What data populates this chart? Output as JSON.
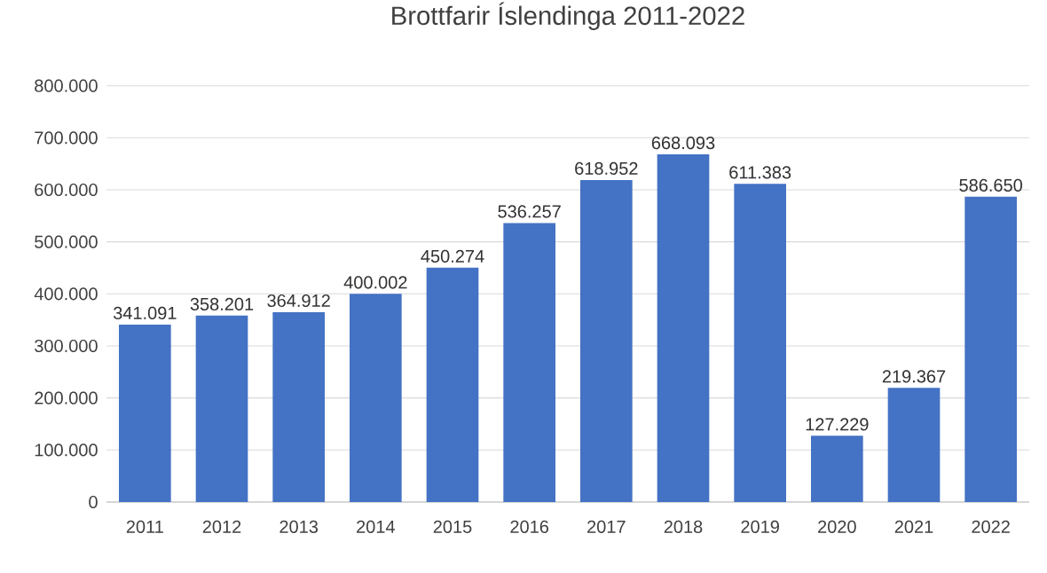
{
  "chart_data": {
    "type": "bar",
    "title": "Brottfarir Íslendinga 2011-2022",
    "categories": [
      "2011",
      "2012",
      "2013",
      "2014",
      "2015",
      "2016",
      "2017",
      "2018",
      "2019",
      "2020",
      "2021",
      "2022"
    ],
    "values": [
      341091,
      358201,
      364912,
      400002,
      450274,
      536257,
      618952,
      668093,
      611383,
      127229,
      219367,
      586650
    ],
    "value_labels": [
      "341.091",
      "358.201",
      "364.912",
      "400.002",
      "450.274",
      "536.257",
      "618.952",
      "668.093",
      "611.383",
      "127.229",
      "219.367",
      "586.650"
    ],
    "color": "#4472c4",
    "ylim": [
      0,
      800000
    ],
    "yticks": [
      {
        "value": 0,
        "label": "0"
      },
      {
        "value": 100000,
        "label": "100.000"
      },
      {
        "value": 200000,
        "label": "200.000"
      },
      {
        "value": 300000,
        "label": "300.000"
      },
      {
        "value": 400000,
        "label": "400.000"
      },
      {
        "value": 500000,
        "label": "500.000"
      },
      {
        "value": 600000,
        "label": "600.000"
      },
      {
        "value": 700000,
        "label": "700.000"
      },
      {
        "value": 800000,
        "label": "800.000"
      }
    ],
    "grid": "y"
  }
}
